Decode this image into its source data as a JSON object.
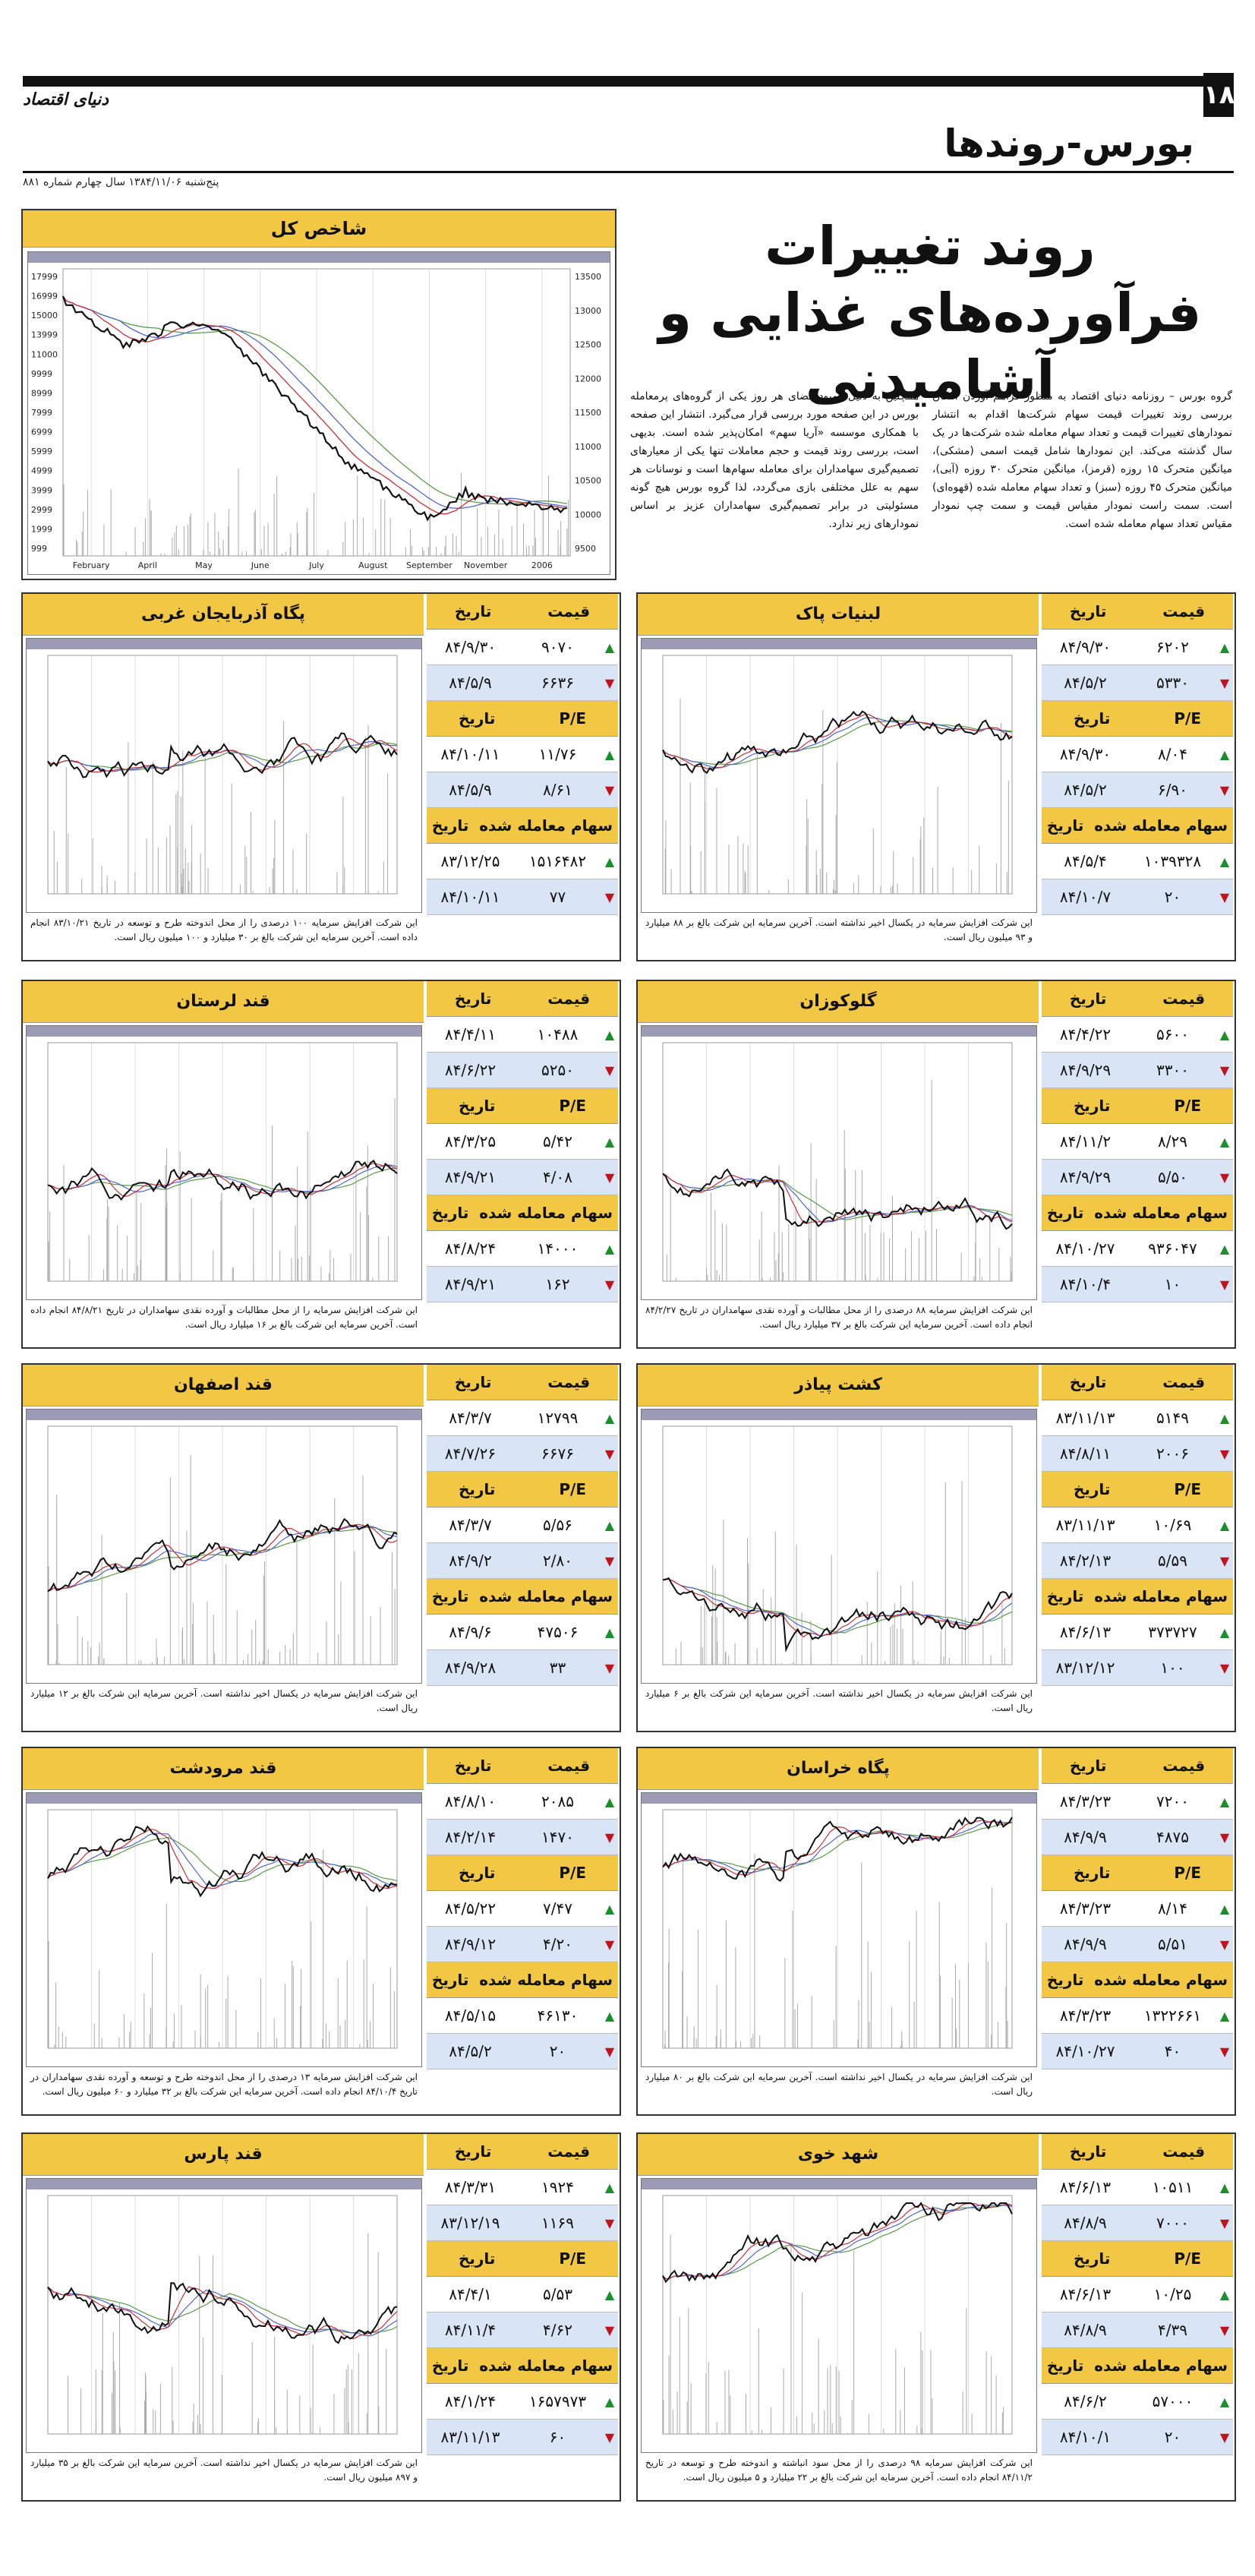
{
  "page_number": "۱۸",
  "brand": "دنیای اقتصاد",
  "section": "بورس-روندها",
  "dateline": "پنج‌شنبه ۱۳۸۴/۱۱/۰۶ سال چهارم شماره ۸۸۱",
  "headline": [
    "روند تغییرات",
    "فرآورده‌های غذایی و آشامیدنی"
  ],
  "intro_right": "گروه بورس – روزنامه دنیای اقتصاد به منظور فراهم آوردن امکان بررسی روند تغییرات قیمت سهام شرکت‌ها اقدام به انتشار نمودارهای تغییرات قیمت و تعداد سهام معامله شده شرکت‌ها در یک سال گذشته می‌کند. این نمودارها شامل قیمت اسمی (مشکی)، میانگین متحرک ۱۵ روزه (قرمز)، میانگین متحرک ۳۰ روزه (آبی)، میانگین متحرک ۴۵ روزه (سبز) و تعداد سهام معامله شده (قهوه‌ای) است. سمت راست نمودار مقیاس قیمت و سمت چپ نمودار مقیاس تعداد سهام معامله شده است.",
  "intro_left": "همچنین به دلیل کمبود فضای هر روز یکی از گروه‌های پرمعامله بورس در این صفحه مورد بررسی قرار می‌گیرد. انتشار این صفحه با همکاری موسسه «آریا سهم» امکان‌پذیر شده است. بدیهی است، بررسی روند قیمت و حجم معاملات تنها یکی از معیارهای تصمیم‌گیری سهامداران برای معامله سهام‌ها است و نوسانات هر سهم به علل مختلفی بازی می‌گردد، لذا گروه بورس هیچ گونه مسئولیتی در برابر تصمیم‌گیری سهامداران عزیز بر اساس نمودارهای زیر ندارد.",
  "index_chart": {
    "title": "شاخص کل",
    "months": [
      "February",
      "April",
      "May",
      "June",
      "July",
      "August",
      "September",
      "November",
      "2006"
    ],
    "left_ticks": [
      "17999",
      "16999",
      "15000",
      "13999",
      "11000",
      "9999",
      "8999",
      "7999",
      "6999",
      "5999",
      "4999",
      "3999",
      "2999",
      "1999",
      "999"
    ],
    "right_ticks": [
      "13500",
      "13000",
      "12500",
      "12000",
      "11500",
      "11000",
      "10500",
      "10000",
      "9500"
    ]
  },
  "headers": {
    "price": "قیمت",
    "date": "تاریخ",
    "pe": "P/E",
    "volume": "سهام معامله شده"
  },
  "panels": [
    {
      "name": "لبنیات پاک",
      "rows": [
        {
          "v": "۶۲۰۲",
          "d": "۸۴/۹/۳۰",
          "dir": "up"
        },
        {
          "v": "۵۳۳۰",
          "d": "۸۴/۵/۲",
          "dir": "dn"
        },
        {
          "v": "۸/۰۴",
          "d": "۸۴/۹/۳۰",
          "dir": "up"
        },
        {
          "v": "۶/۹۰",
          "d": "۸۴/۵/۲",
          "dir": "dn"
        },
        {
          "v": "۱۰۳۹۳۲۸",
          "d": "۸۴/۵/۴",
          "dir": "up"
        },
        {
          "v": "۲۰",
          "d": "۸۴/۱۰/۷",
          "dir": "dn"
        }
      ],
      "note": "این شرکت افزایش سرمایه در یکسال اخیر نداشته است. آخرین سرمایه این شرکت بالغ بر ۸۸ میلیارد و ۹۳ میلیون ریال است."
    },
    {
      "name": "پگاه آذربایجان غربی",
      "rows": [
        {
          "v": "۹۰۷۰",
          "d": "۸۴/۹/۳۰",
          "dir": "up"
        },
        {
          "v": "۶۶۳۶",
          "d": "۸۴/۵/۹",
          "dir": "dn"
        },
        {
          "v": "۱۱/۷۶",
          "d": "۸۴/۱۰/۱۱",
          "dir": "up"
        },
        {
          "v": "۸/۶۱",
          "d": "۸۴/۵/۹",
          "dir": "dn"
        },
        {
          "v": "۱۵۱۶۴۸۲",
          "d": "۸۳/۱۲/۲۵",
          "dir": "up"
        },
        {
          "v": "۷۷",
          "d": "۸۴/۱۰/۱۱",
          "dir": "dn"
        }
      ],
      "note": "این شرکت افزایش سرمایه ۱۰۰ درصدی را از محل اندوخته طرح و توسعه در تاریخ ۸۳/۱۰/۲۱ انجام داده است. آخرین سرمایه این شرکت بالغ بر ۳۰ میلیارد و ۱۰۰ میلیون ریال است."
    },
    {
      "name": "گلوکوزان",
      "rows": [
        {
          "v": "۵۶۰۰",
          "d": "۸۴/۴/۲۲",
          "dir": "up"
        },
        {
          "v": "۳۳۰۰",
          "d": "۸۴/۹/۲۹",
          "dir": "dn"
        },
        {
          "v": "۸/۲۹",
          "d": "۸۴/۱۱/۲",
          "dir": "up"
        },
        {
          "v": "۵/۵۰",
          "d": "۸۴/۹/۲۹",
          "dir": "dn"
        },
        {
          "v": "۹۳۶۰۴۷",
          "d": "۸۴/۱۰/۲۷",
          "dir": "up"
        },
        {
          "v": "۱۰",
          "d": "۸۴/۱۰/۴",
          "dir": "dn"
        }
      ],
      "note": "این شرکت افزایش سرمایه ۸۸ درصدی را از محل مطالبات و آورده نقدی سهامداران در تاریخ ۸۴/۲/۲۷ انجام داده است. آخرین سرمایه این شرکت بالغ بر ۳۷ میلیارد ریال است."
    },
    {
      "name": "قند لرستان",
      "rows": [
        {
          "v": "۱۰۴۸۸",
          "d": "۸۴/۴/۱۱",
          "dir": "up"
        },
        {
          "v": "۵۲۵۰",
          "d": "۸۴/۶/۲۲",
          "dir": "dn"
        },
        {
          "v": "۵/۴۲",
          "d": "۸۴/۳/۲۵",
          "dir": "up"
        },
        {
          "v": "۴/۰۸",
          "d": "۸۴/۹/۲۱",
          "dir": "dn"
        },
        {
          "v": "۱۴۰۰۰",
          "d": "۸۴/۸/۲۴",
          "dir": "up"
        },
        {
          "v": "۱۶۲",
          "d": "۸۴/۹/۲۱",
          "dir": "dn"
        }
      ],
      "note": "این شرکت افزایش سرمایه را از محل مطالبات و آورده نقدی سهامداران در تاریخ ۸۴/۸/۲۱ انجام داده است. آخرین سرمایه این شرکت بالغ بر ۱۶ میلیارد ریال است."
    },
    {
      "name": "کشت پیاذر",
      "rows": [
        {
          "v": "۵۱۴۹",
          "d": "۸۳/۱۱/۱۳",
          "dir": "up"
        },
        {
          "v": "۲۰۰۶",
          "d": "۸۴/۸/۱۱",
          "dir": "dn"
        },
        {
          "v": "۱۰/۶۹",
          "d": "۸۳/۱۱/۱۳",
          "dir": "up"
        },
        {
          "v": "۵/۵۹",
          "d": "۸۴/۲/۱۳",
          "dir": "dn"
        },
        {
          "v": "۳۷۳۷۲۷",
          "d": "۸۴/۶/۱۳",
          "dir": "up"
        },
        {
          "v": "۱۰۰",
          "d": "۸۳/۱۲/۱۲",
          "dir": "dn"
        }
      ],
      "note": "این شرکت افزایش سرمایه در یکسال اخیر نداشته است. آخرین سرمایه این شرکت بالغ بر ۶ میلیارد ریال است."
    },
    {
      "name": "قند اصفهان",
      "rows": [
        {
          "v": "۱۲۷۹۹",
          "d": "۸۴/۳/۷",
          "dir": "up"
        },
        {
          "v": "۶۶۷۶",
          "d": "۸۴/۷/۲۶",
          "dir": "dn"
        },
        {
          "v": "۵/۵۶",
          "d": "۸۴/۳/۷",
          "dir": "up"
        },
        {
          "v": "۲/۸۰",
          "d": "۸۴/۹/۲",
          "dir": "dn"
        },
        {
          "v": "۴۷۵۰۶",
          "d": "۸۴/۹/۶",
          "dir": "up"
        },
        {
          "v": "۳۳",
          "d": "۸۴/۹/۲۸",
          "dir": "dn"
        }
      ],
      "note": "این شرکت افزایش سرمایه در یکسال اخیر نداشته است. آخرین سرمایه این شرکت بالغ بر ۱۲ میلیارد ریال است."
    },
    {
      "name": "پگاه خراسان",
      "rows": [
        {
          "v": "۷۲۰۰",
          "d": "۸۴/۳/۲۳",
          "dir": "up"
        },
        {
          "v": "۴۸۷۵",
          "d": "۸۴/۹/۹",
          "dir": "dn"
        },
        {
          "v": "۸/۱۴",
          "d": "۸۴/۳/۲۳",
          "dir": "up"
        },
        {
          "v": "۵/۵۱",
          "d": "۸۴/۹/۹",
          "dir": "dn"
        },
        {
          "v": "۱۳۲۲۶۶۱",
          "d": "۸۴/۳/۲۳",
          "dir": "up"
        },
        {
          "v": "۴۰",
          "d": "۸۴/۱۰/۲۷",
          "dir": "dn"
        }
      ],
      "note": "این شرکت افزایش سرمایه در یکسال اخیر نداشته است. آخرین سرمایه این شرکت بالغ بر ۸۰ میلیارد ریال است."
    },
    {
      "name": "قند مرودشت",
      "rows": [
        {
          "v": "۲۰۸۵",
          "d": "۸۴/۸/۱۰",
          "dir": "up"
        },
        {
          "v": "۱۴۷۰",
          "d": "۸۴/۲/۱۴",
          "dir": "dn"
        },
        {
          "v": "۷/۴۷",
          "d": "۸۴/۵/۲۲",
          "dir": "up"
        },
        {
          "v": "۴/۲۰",
          "d": "۸۴/۹/۱۲",
          "dir": "dn"
        },
        {
          "v": "۴۶۱۳۰",
          "d": "۸۴/۵/۱۵",
          "dir": "up"
        },
        {
          "v": "۲۰",
          "d": "۸۴/۵/۲",
          "dir": "dn"
        }
      ],
      "note": "این شرکت افزایش سرمایه ۱۳ درصدی را از محل اندوخته طرح و توسعه و آورده نقدی سهامداران در تاریخ ۸۴/۱۰/۴ انجام داده است. آخرین سرمایه این شرکت بالغ بر ۳۲ میلیارد و ۶۰ میلیون ریال است."
    },
    {
      "name": "شهد خوی",
      "rows": [
        {
          "v": "۱۰۵۱۱",
          "d": "۸۴/۶/۱۳",
          "dir": "up"
        },
        {
          "v": "۷۰۰۰",
          "d": "۸۴/۸/۹",
          "dir": "dn"
        },
        {
          "v": "۱۰/۲۵",
          "d": "۸۴/۶/۱۳",
          "dir": "up"
        },
        {
          "v": "۴/۳۹",
          "d": "۸۴/۸/۹",
          "dir": "dn"
        },
        {
          "v": "۵۷۰۰۰",
          "d": "۸۴/۶/۲",
          "dir": "up"
        },
        {
          "v": "۲۰",
          "d": "۸۴/۱۰/۱",
          "dir": "dn"
        }
      ],
      "note": "این شرکت افزایش سرمایه ۹۸ درصدی را از محل سود انباشته و اندوخته طرح و توسعه در تاریخ ۸۴/۱۱/۲ انجام داده است. آخرین سرمایه این شرکت بالغ بر ۲۲ میلیارد و ۵ میلیون ریال است."
    },
    {
      "name": "قند پارس",
      "rows": [
        {
          "v": "۱۹۲۴",
          "d": "۸۴/۳/۳۱",
          "dir": "up"
        },
        {
          "v": "۱۱۶۹",
          "d": "۸۳/۱۲/۱۹",
          "dir": "dn"
        },
        {
          "v": "۵/۵۳",
          "d": "۸۴/۴/۱",
          "dir": "up"
        },
        {
          "v": "۴/۶۲",
          "d": "۸۴/۱۱/۴",
          "dir": "dn"
        },
        {
          "v": "۱۶۵۷۹۷۳",
          "d": "۸۴/۱/۲۴",
          "dir": "up"
        },
        {
          "v": "۶۰",
          "d": "۸۳/۱۱/۱۳",
          "dir": "dn"
        }
      ],
      "note": "این شرکت افزایش سرمایه در یکسال اخیر نداشته است. آخرین سرمایه این شرکت بالغ بر ۳۵ میلیارد و ۸۹۷ میلیون ریال است."
    }
  ]
}
